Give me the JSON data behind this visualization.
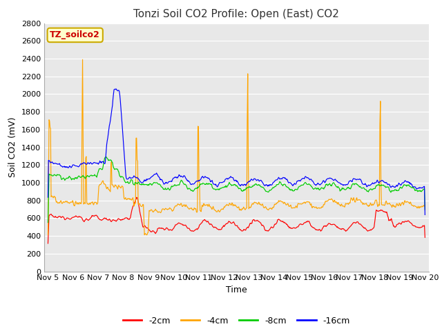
{
  "title": "Tonzi Soil CO2 Profile: Open (East) CO2",
  "xlabel": "Time",
  "ylabel": "Soil CO2 (mV)",
  "ylim": [
    0,
    2800
  ],
  "yticks": [
    0,
    200,
    400,
    600,
    800,
    1000,
    1200,
    1400,
    1600,
    1800,
    2000,
    2200,
    2400,
    2600,
    2800
  ],
  "legend_labels": [
    "-2cm",
    "-4cm",
    "-8cm",
    "-16cm"
  ],
  "legend_colors": [
    "#ff0000",
    "#ffa500",
    "#00cc00",
    "#0000ff"
  ],
  "line_colors": [
    "#ff0000",
    "#ffa500",
    "#00cc00",
    "#0000ff"
  ],
  "watermark_text": "TZ_soilco2",
  "watermark_bg": "#ffffcc",
  "watermark_border": "#ccaa00",
  "watermark_text_color": "#cc0000",
  "fig_bg_color": "#ffffff",
  "plot_bg_color": "#e8e8e8",
  "title_fontsize": 11,
  "axis_label_fontsize": 9,
  "tick_label_fontsize": 8,
  "legend_fontsize": 9,
  "x_start": 4.85,
  "x_end": 20.15,
  "x_ticks": [
    5,
    6,
    7,
    8,
    9,
    10,
    11,
    12,
    13,
    14,
    15,
    16,
    17,
    18,
    19,
    20
  ],
  "x_tick_labels": [
    "Nov 5",
    "Nov 6",
    "Nov 7",
    "Nov 8",
    "Nov 9",
    "Nov 10",
    "Nov 11",
    "Nov 12",
    "Nov 13",
    "Nov 14",
    "Nov 15",
    "Nov 16",
    "Nov 17",
    "Nov 18",
    "Nov 19",
    "Nov 20"
  ]
}
